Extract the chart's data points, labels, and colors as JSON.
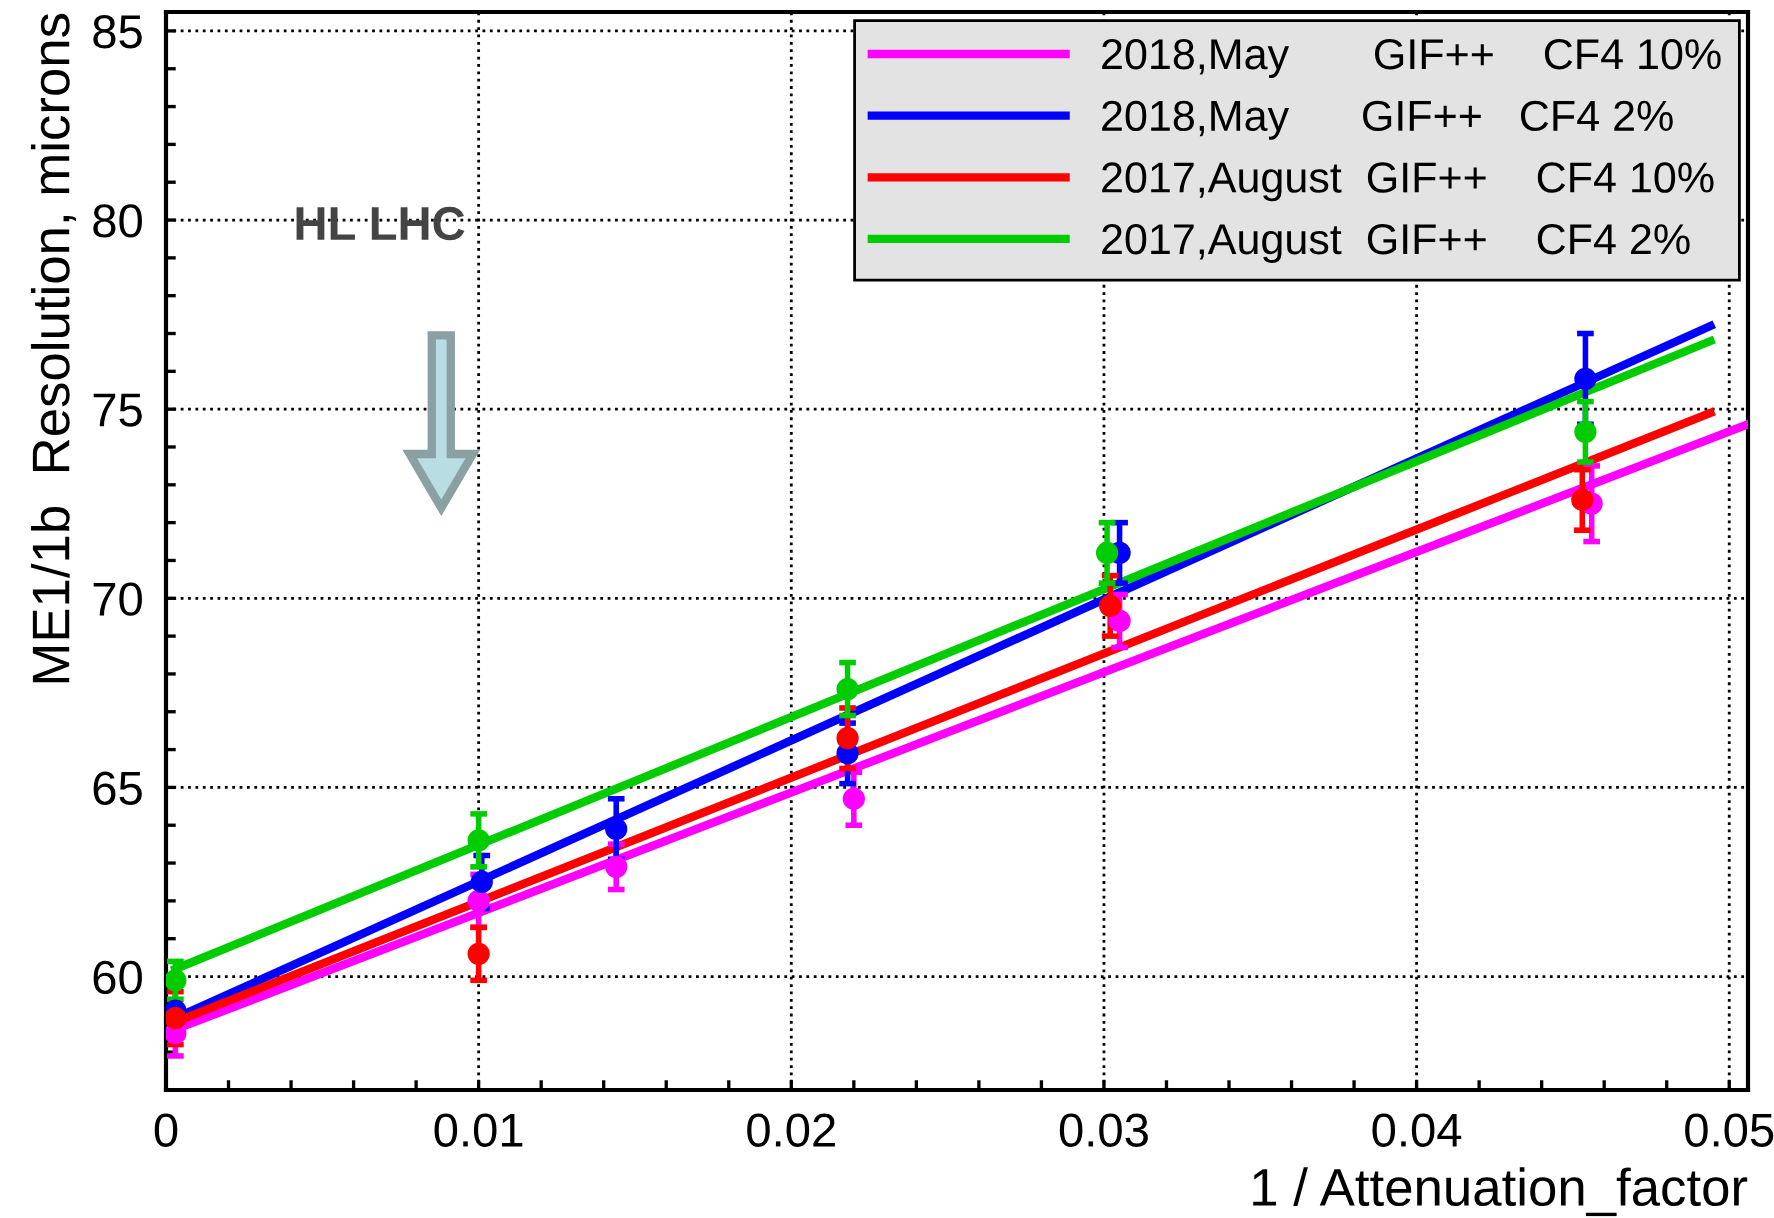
{
  "chart_data": {
    "type": "scatter",
    "xlabel": "1 / Attenuation_factor",
    "ylabel": "ME1/1b  Resolution, microns",
    "annotations": [
      "HL LHC"
    ],
    "xlim": [
      0,
      0.0506
    ],
    "ylim": [
      57,
      85.5
    ],
    "xticks": [
      0,
      {
        "value": 0.002,
        "label": null
      },
      {
        "value": 0.004,
        "label": null
      },
      {
        "value": 0.006,
        "label": null
      },
      {
        "value": 0.008,
        "label": null
      },
      0.01,
      {
        "value": 0.012,
        "label": null
      },
      {
        "value": 0.014,
        "label": null
      },
      {
        "value": 0.016,
        "label": null
      },
      {
        "value": 0.018,
        "label": null
      },
      0.02,
      {
        "value": 0.022,
        "label": null
      },
      {
        "value": 0.024,
        "label": null
      },
      {
        "value": 0.026,
        "label": null
      },
      {
        "value": 0.028,
        "label": null
      },
      0.03,
      {
        "value": 0.032,
        "label": null
      },
      {
        "value": 0.034,
        "label": null
      },
      {
        "value": 0.036,
        "label": null
      },
      {
        "value": 0.038,
        "label": null
      },
      0.04,
      {
        "value": 0.042,
        "label": null
      },
      {
        "value": 0.044,
        "label": null
      },
      {
        "value": 0.046,
        "label": null
      },
      {
        "value": 0.048,
        "label": null
      },
      0.05
    ],
    "yticks": [
      {
        "value": 58,
        "label": null
      },
      {
        "value": 59,
        "label": null
      },
      60,
      {
        "value": 61,
        "label": null
      },
      {
        "value": 62,
        "label": null
      },
      {
        "value": 63,
        "label": null
      },
      {
        "value": 64,
        "label": null
      },
      65,
      {
        "value": 66,
        "label": null
      },
      {
        "value": 67,
        "label": null
      },
      {
        "value": 68,
        "label": null
      },
      {
        "value": 69,
        "label": null
      },
      70,
      {
        "value": 71,
        "label": null
      },
      {
        "value": 72,
        "label": null
      },
      {
        "value": 73,
        "label": null
      },
      {
        "value": 74,
        "label": null
      },
      75,
      {
        "value": 76,
        "label": null
      },
      {
        "value": 77,
        "label": null
      },
      {
        "value": 78,
        "label": null
      },
      {
        "value": 79,
        "label": null
      },
      80,
      {
        "value": 81,
        "label": null
      },
      {
        "value": 82,
        "label": null
      },
      {
        "value": 83,
        "label": null
      },
      {
        "value": 84,
        "label": null
      },
      85
    ],
    "grid": true,
    "legend": "top right",
    "series": [
      {
        "type": "line",
        "name": "2018,May       GIF++    CF4 10%",
        "color": "#ff00ff",
        "x": [
          0.0003,
          0.0506
        ],
        "values": [
          58.6,
          74.6
        ]
      },
      {
        "type": "line",
        "name": "2018,May      GIF++   CF4 2%",
        "color": "#0000ff",
        "x": [
          0.0003,
          0.0494
        ],
        "values": [
          58.9,
          77.2
        ]
      },
      {
        "type": "line",
        "name": "2017,August  GIF++    CF4 10%",
        "color": "#ff0000",
        "x": [
          0.0003,
          0.0494
        ],
        "values": [
          58.8,
          74.9
        ]
      },
      {
        "type": "line",
        "name": "2017,August  GIF++    CF4 2%",
        "color": "#00cc00",
        "x": [
          0.0003,
          0.0494
        ],
        "values": [
          60.2,
          76.8
        ]
      },
      {
        "marker": "circle",
        "color": "#ff00ff",
        "x": [
          0.0003,
          0.01,
          0.0144,
          0.022,
          0.0305,
          0.0456
        ],
        "values": [
          58.5,
          62.0,
          62.9,
          64.7,
          69.4,
          72.5
        ],
        "errors": [
          0.6,
          0.7,
          0.6,
          0.7,
          0.7,
          1.0
        ]
      },
      {
        "marker": "circle",
        "color": "#0000ff",
        "x": [
          0.0003,
          0.0101,
          0.0144,
          0.0218,
          0.0305,
          0.0454
        ],
        "values": [
          59.1,
          62.5,
          63.9,
          65.9,
          71.2,
          75.8
        ],
        "errors": [
          null,
          0.7,
          0.8,
          0.8,
          0.8,
          1.2
        ]
      },
      {
        "marker": "circle",
        "color": "#ff0000",
        "x": [
          0.0003,
          0.01,
          0.0218,
          0.0302,
          0.0453
        ],
        "values": [
          58.9,
          60.6,
          66.3,
          69.8,
          72.6
        ],
        "errors": [
          0.7,
          0.7,
          0.8,
          0.8,
          0.8
        ]
      },
      {
        "marker": "circle",
        "color": "#00cc00",
        "x": [
          0.0003,
          0.01,
          0.0218,
          0.0301,
          0.0454
        ],
        "values": [
          59.9,
          63.6,
          67.6,
          71.2,
          74.4
        ],
        "errors": [
          0.5,
          0.7,
          0.7,
          0.8,
          0.8
        ]
      }
    ]
  }
}
